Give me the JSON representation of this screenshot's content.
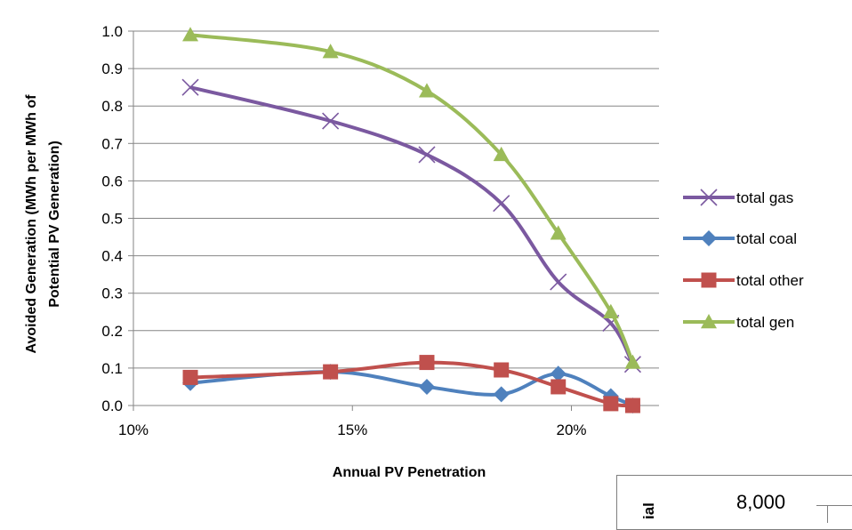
{
  "chart_data": {
    "type": "line",
    "title": "",
    "xlabel": "Annual PV Penetration",
    "ylabel": "Avoided Generation (MWh per MWh of Potential PV Generation)",
    "ylabel_lines": [
      "Avoided Generation (MWh per MWh of",
      "Potential PV Generation)"
    ],
    "xlim": [
      0.1,
      0.22
    ],
    "ylim": [
      0,
      1.0
    ],
    "x_ticks": [
      0.1,
      0.15,
      0.2
    ],
    "x_tick_labels": [
      "10%",
      "15%",
      "20%"
    ],
    "y_ticks": [
      0.0,
      0.1,
      0.2,
      0.3,
      0.4,
      0.5,
      0.6,
      0.7,
      0.8,
      0.9,
      1.0
    ],
    "y_tick_labels": [
      "0.0",
      "0.1",
      "0.2",
      "0.3",
      "0.4",
      "0.5",
      "0.6",
      "0.7",
      "0.8",
      "0.9",
      "1.0"
    ],
    "grid": "horizontal",
    "legend": "right",
    "x": [
      0.113,
      0.145,
      0.167,
      0.184,
      0.197,
      0.209,
      0.214
    ],
    "series": [
      {
        "name": "total gas",
        "color": "#7b59a0",
        "marker": "x",
        "values": [
          0.85,
          0.76,
          0.67,
          0.54,
          0.33,
          0.22,
          0.11
        ]
      },
      {
        "name": "total coal",
        "color": "#4f81bd",
        "marker": "diamond",
        "values": [
          0.06,
          0.09,
          0.05,
          0.03,
          0.085,
          0.025,
          0.0
        ]
      },
      {
        "name": "total other",
        "color": "#c0504d",
        "marker": "square",
        "values": [
          0.075,
          0.09,
          0.115,
          0.095,
          0.05,
          0.005,
          0.0
        ]
      },
      {
        "name": "total gen",
        "color": "#9bbb59",
        "marker": "triangle",
        "values": [
          0.99,
          0.945,
          0.84,
          0.67,
          0.46,
          0.25,
          0.115
        ]
      }
    ]
  },
  "inset": {
    "tick_label": "8,000",
    "ylabel_fragment": "ial"
  }
}
